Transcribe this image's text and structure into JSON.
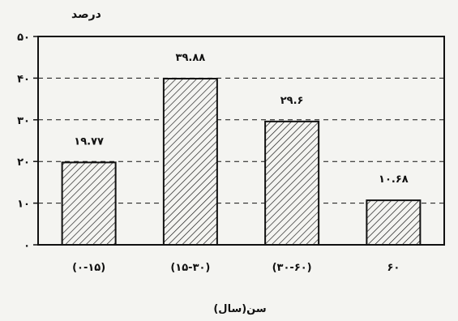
{
  "chart_data": {
    "type": "bar",
    "title": "",
    "ylabel": "درصد",
    "xlabel": "سن(سال)",
    "ylim": [
      0,
      50
    ],
    "yticks": [
      0,
      10,
      20,
      30,
      40,
      50
    ],
    "ytick_labels": [
      "۰",
      "۱۰",
      "۲۰",
      "۳۰",
      "۴۰",
      "۵۰"
    ],
    "categories": [
      "(۰-۱۵)",
      "(۱۵-۳۰)",
      "(۳۰-۶۰)",
      "۶۰"
    ],
    "values": [
      19.77,
      39.88,
      29.6,
      10.68
    ],
    "value_labels": [
      "۱۹.۷۷",
      "۳۹.۸۸",
      "۲۹.۶",
      "۱۰.۶۸"
    ],
    "grid": "dashed horizontal",
    "bar_fill": "diagonal hatch",
    "colors": {
      "ink": "#111111",
      "background": "#f4f4f1"
    }
  }
}
